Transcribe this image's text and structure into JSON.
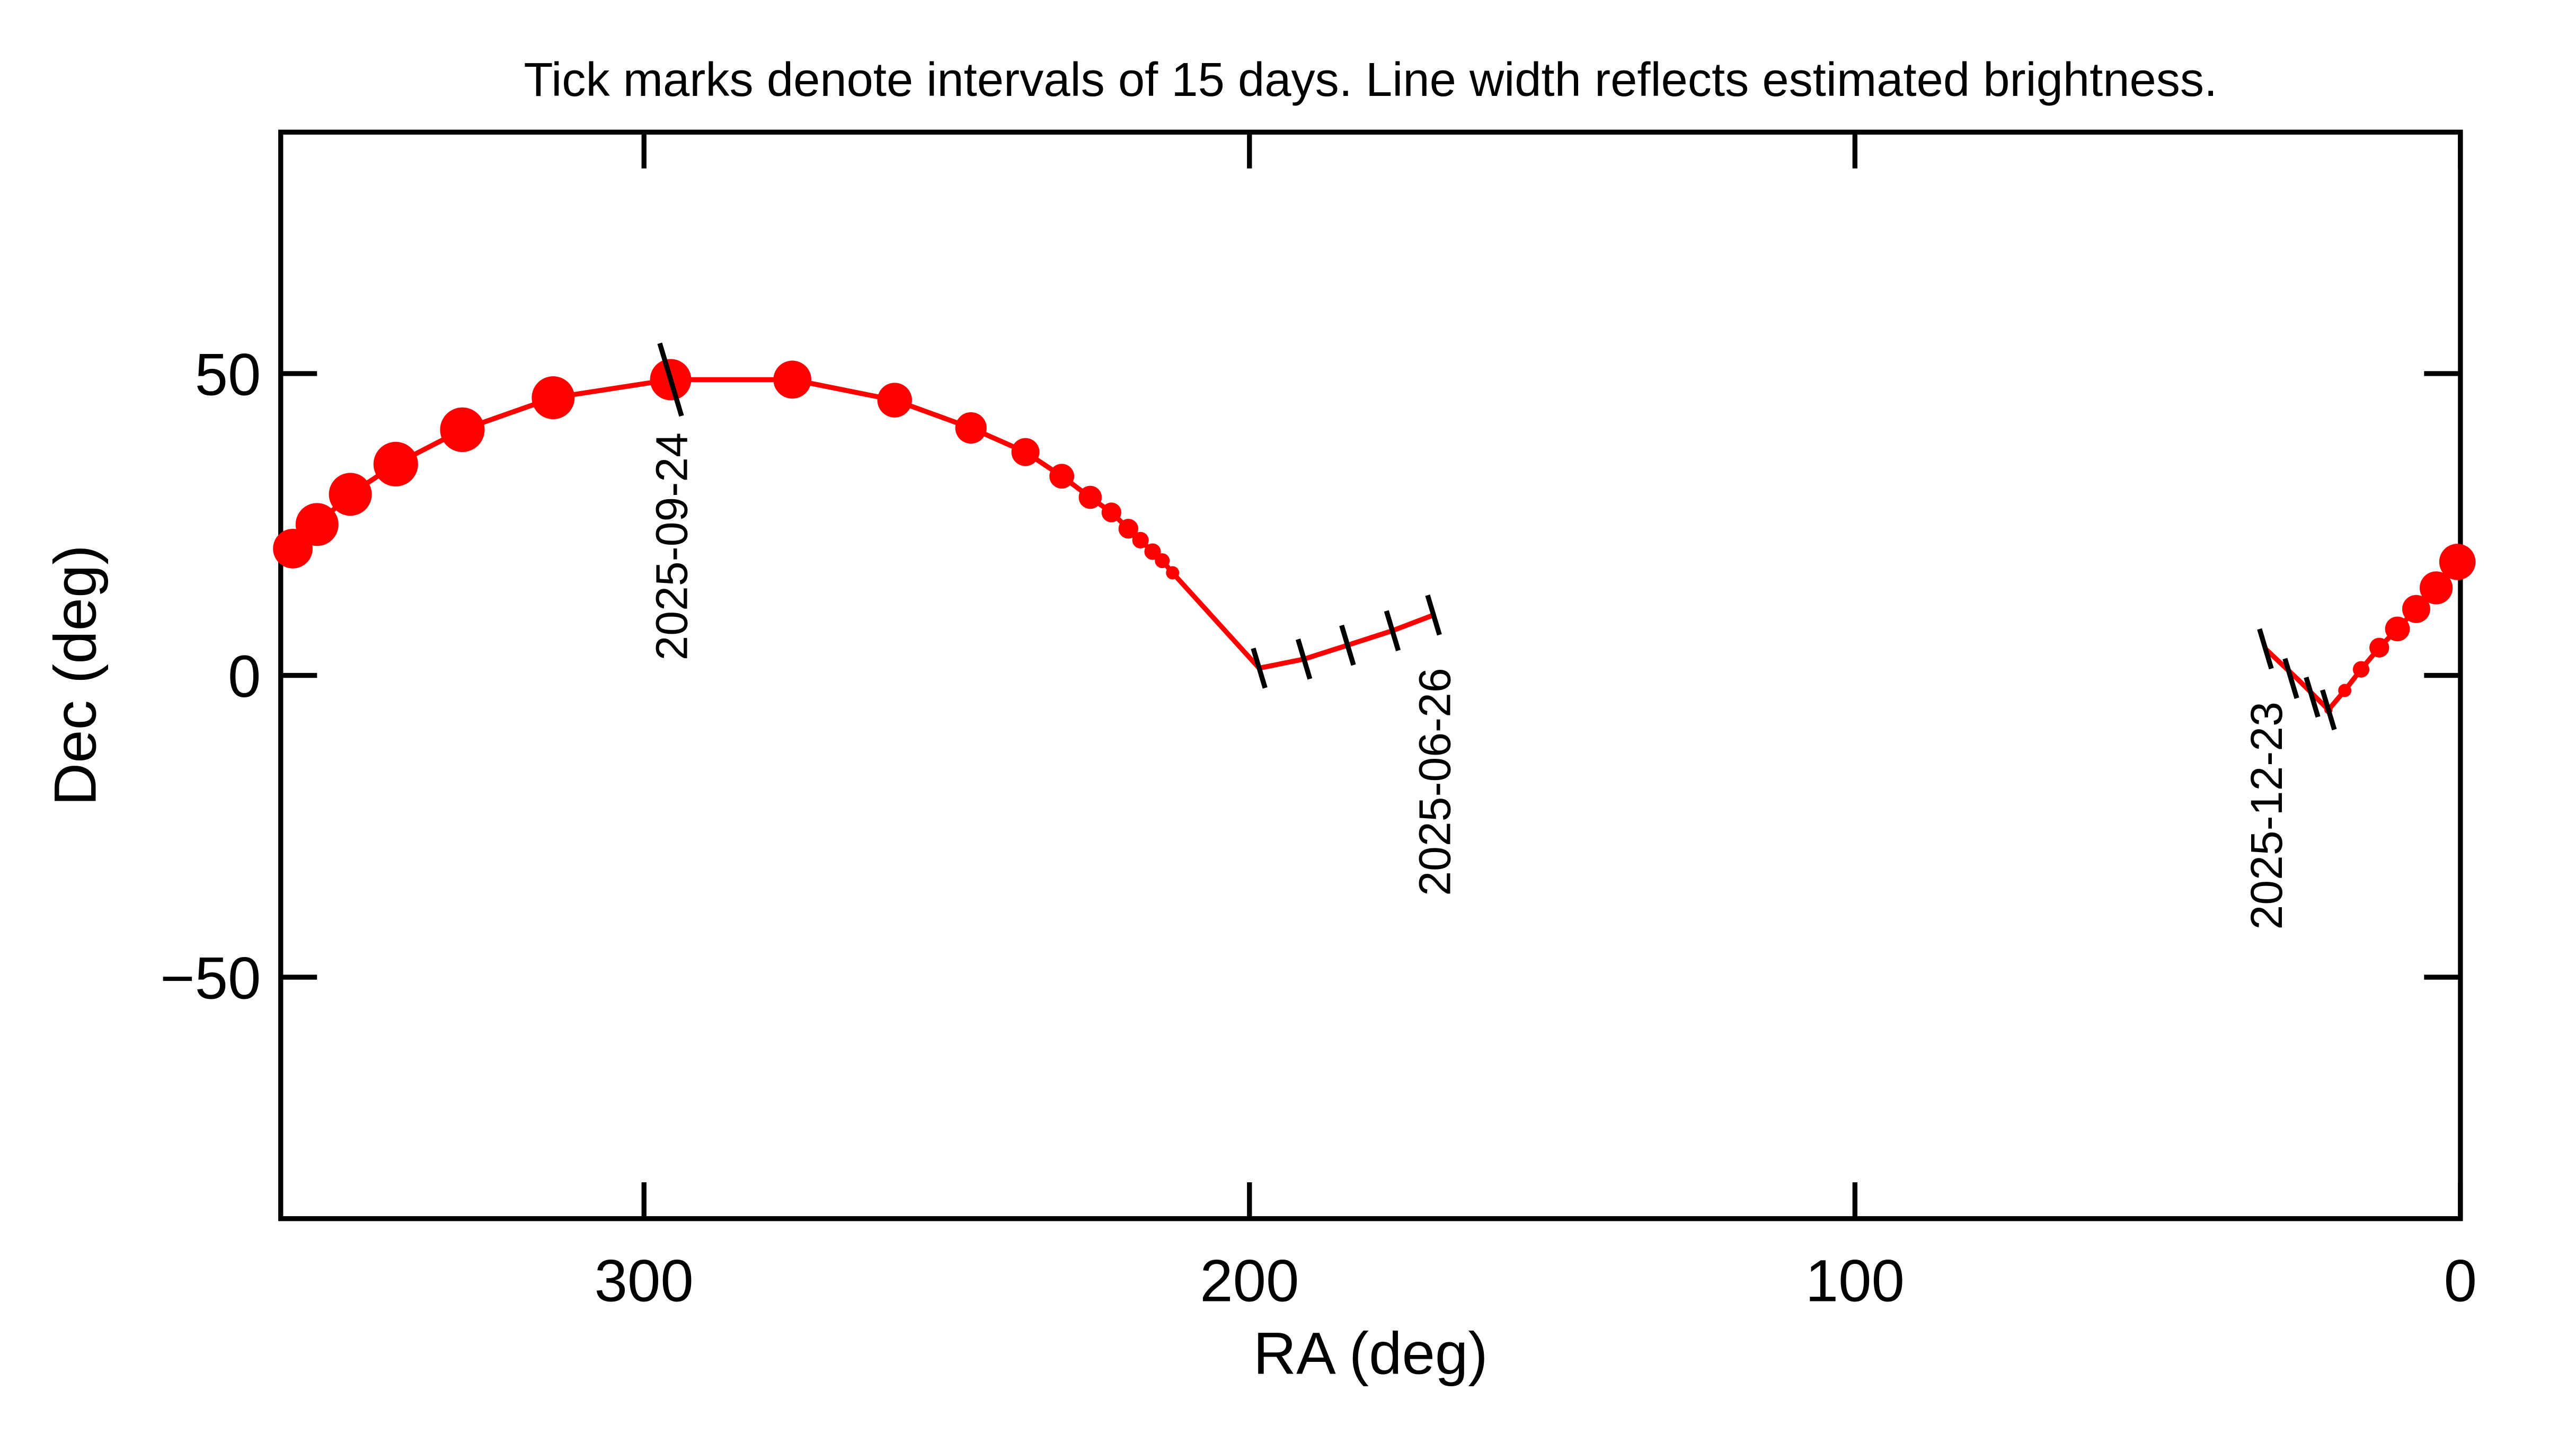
{
  "chart_data": {
    "type": "scatter",
    "title": "Tick marks denote intervals of 15 days.  Line width reflects estimated brightness.",
    "x_label": "RA (deg)",
    "y_label": "Dec (deg)",
    "xlim": [
      360,
      0
    ],
    "ylim": [
      -90,
      90
    ],
    "xticks": [
      300,
      200,
      100,
      0
    ],
    "yticks": [
      {
        "value": -50,
        "label": "−50"
      },
      0,
      50
    ],
    "series": [
      {
        "color": "#ff0000",
        "x": [
          169.6,
          176.4,
          183.8,
          191,
          198.4,
          212.7,
          214.4,
          216,
          218,
          220,
          222.8,
          226.3,
          231,
          237,
          246,
          258.6,
          275.5,
          295.6,
          315,
          330,
          341,
          348.5,
          354,
          358,
          null,
          0.5,
          4,
          7.3,
          10.4,
          13.4,
          16.4,
          19.1,
          21.8,
          26.7,
          32.2
        ],
        "values": [
          10,
          7.4,
          5,
          2.7,
          1.2,
          17,
          19,
          20.5,
          22.4,
          24.3,
          27,
          29.5,
          33,
          37,
          41,
          45.6,
          49,
          49,
          46,
          40.7,
          35,
          30,
          25,
          21,
          null,
          18.8,
          14.5,
          11,
          7.7,
          4.6,
          1,
          -2.5,
          -5.7,
          -0.8,
          4.4
        ],
        "width": [
          3,
          3,
          3,
          3,
          3,
          8,
          9,
          10,
          10,
          12,
          12,
          14,
          15,
          17,
          19,
          21,
          23,
          25,
          26,
          27,
          27,
          26,
          26,
          24,
          null,
          22,
          20,
          17,
          15,
          12,
          10,
          8,
          5,
          3,
          3
        ]
      }
    ],
    "date_marks": {
      "x": [
        169.6,
        176.4,
        183.8,
        191,
        198.4,
        295.6,
        21.8,
        24.5,
        28,
        32.2
      ],
      "y": [
        10,
        7.4,
        5,
        2.7,
        1.2,
        49,
        -5.7,
        -3.6,
        -0.5,
        4.4
      ]
    },
    "annotations": [
      {
        "text": "2025-09-24",
        "x": 295.6,
        "y": 49
      },
      {
        "text": "2025-06-26",
        "x": 169.6,
        "y": 10
      },
      {
        "text": "2025-12-23",
        "x": 32.2,
        "y": 4.4
      }
    ],
    "mark_color": "#000000"
  }
}
